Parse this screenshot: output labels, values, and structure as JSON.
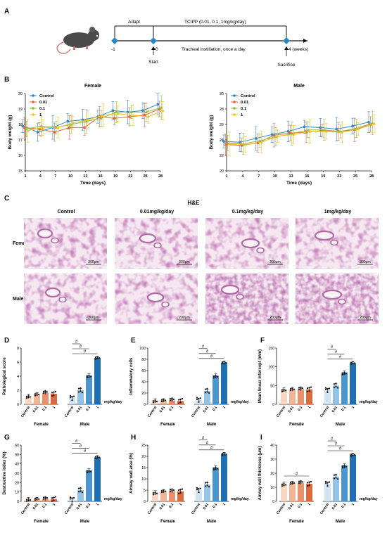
{
  "panel_labels": [
    "A",
    "B",
    "C",
    "D",
    "E",
    "F",
    "G",
    "H",
    "I"
  ],
  "timeline": {
    "adapt_label": "Adapt",
    "treatment_label": "TCIPP (0.01, 0.1, 1mg/kg/day)",
    "instillation_label": "Tracheal instillation, once a day",
    "ticks": [
      "-1",
      "0",
      "4 (weeks)"
    ],
    "start_label": "Start",
    "sacrifice_label": "Sacrifice"
  },
  "colors": {
    "control": "#2b86c5",
    "c001": "#e0663a",
    "c01": "#8dbb3f",
    "c1": "#f0c419",
    "female_bars": [
      "#f7d7c4",
      "#f1b596",
      "#e8916c",
      "#dc6a3f"
    ],
    "male_bars": [
      "#cfe3f3",
      "#94c3e6",
      "#4b96cf",
      "#1f6fb3"
    ],
    "he_bg": "#f6e8f1",
    "he_tissue": "#b06aa3"
  },
  "chart_data": [
    {
      "type": "line",
      "title": "Female",
      "xlabel": "Time (days)",
      "ylabel": "Body weight (g)",
      "x": [
        1,
        4,
        7,
        10,
        13,
        16,
        19,
        22,
        25,
        28
      ],
      "xlim": [
        1,
        28
      ],
      "ylim": [
        15,
        20
      ],
      "yticks": [
        15,
        16,
        17,
        18,
        19,
        20
      ],
      "series": [
        {
          "name": "Control",
          "values": [
            17.9,
            17.5,
            17.8,
            18.2,
            18.3,
            18.5,
            18.9,
            18.8,
            18.9,
            19.3
          ]
        },
        {
          "name": "0.01",
          "values": [
            17.8,
            17.7,
            17.5,
            17.8,
            17.8,
            18.5,
            18.4,
            18.5,
            18.6,
            19.0
          ]
        },
        {
          "name": "0.1",
          "values": [
            17.7,
            17.9,
            17.8,
            18.0,
            18.2,
            18.4,
            18.8,
            18.8,
            18.8,
            19.1
          ]
        },
        {
          "name": "1",
          "values": [
            17.6,
            17.8,
            17.8,
            18.1,
            18.3,
            18.6,
            18.7,
            18.6,
            18.5,
            18.9
          ]
        }
      ],
      "legend": "top-left"
    },
    {
      "type": "line",
      "title": "Male",
      "xlabel": "Time (days)",
      "ylabel": "Body weight (g)",
      "x": [
        1,
        4,
        7,
        10,
        13,
        16,
        19,
        22,
        25,
        28
      ],
      "xlim": [
        1,
        28
      ],
      "ylim": [
        20,
        30
      ],
      "yticks": [
        20,
        22,
        24,
        26,
        28,
        30
      ],
      "series": [
        {
          "name": "Control",
          "values": [
            23.8,
            23.7,
            24.2,
            24.7,
            25.1,
            25.7,
            25.6,
            25.4,
            25.8,
            26.3
          ]
        },
        {
          "name": "0.01",
          "values": [
            23.4,
            23.3,
            23.6,
            24.6,
            24.9,
            25.0,
            25.2,
            25.1,
            25.3,
            26.0
          ]
        },
        {
          "name": "0.1",
          "values": [
            23.6,
            23.5,
            23.9,
            24.4,
            24.8,
            25.3,
            25.3,
            25.1,
            25.5,
            26.2
          ]
        },
        {
          "name": "1",
          "values": [
            23.5,
            23.4,
            23.7,
            24.5,
            24.7,
            25.1,
            25.1,
            25.0,
            25.4,
            26.1
          ]
        }
      ],
      "legend": "top-left"
    },
    {
      "type": "bar",
      "ylabel": "Pathological score",
      "ylim": [
        0,
        8
      ],
      "yticks": [
        0,
        2,
        4,
        6,
        8
      ],
      "categories": [
        "Control",
        "0.01",
        "0.1",
        "1"
      ],
      "groups": [
        "Female",
        "Male"
      ],
      "unit_label": "mg/kg/day",
      "series": [
        {
          "name": "Female",
          "values": [
            1.2,
            1.4,
            1.6,
            1.5
          ]
        },
        {
          "name": "Male",
          "values": [
            0.9,
            2.0,
            4.1,
            6.6
          ]
        }
      ],
      "significance": [
        "#",
        "#",
        "#"
      ]
    },
    {
      "type": "bar",
      "ylabel": "Inflammatory cells",
      "ylim": [
        0,
        100
      ],
      "yticks": [
        0,
        20,
        40,
        60,
        80,
        100
      ],
      "categories": [
        "Control",
        "0.01",
        "0.1",
        "1"
      ],
      "groups": [
        "Female",
        "Male"
      ],
      "unit_label": "mg/kg/day",
      "series": [
        {
          "name": "Female",
          "values": [
            7,
            7,
            7,
            6
          ]
        },
        {
          "name": "Male",
          "values": [
            8,
            24,
            51,
            74
          ]
        }
      ],
      "significance": [
        "#",
        "#",
        "#"
      ]
    },
    {
      "type": "bar",
      "ylabel": "Mean linear intercept (mm)",
      "ylim": [
        0,
        150
      ],
      "yticks": [
        0,
        50,
        100,
        150
      ],
      "categories": [
        "Control",
        "0.01",
        "0.1",
        "1"
      ],
      "groups": [
        "Female",
        "Male"
      ],
      "unit_label": "mg/kg/day",
      "series": [
        {
          "name": "Female",
          "values": [
            40,
            40,
            40,
            40
          ]
        },
        {
          "name": "Male",
          "values": [
            38,
            50,
            85,
            110
          ]
        }
      ],
      "significance": [
        "#",
        "#",
        "#"
      ]
    },
    {
      "type": "bar",
      "ylabel": "Destructive index (%)",
      "ylim": [
        0,
        60
      ],
      "yticks": [
        0,
        10,
        20,
        30,
        40,
        50,
        60
      ],
      "categories": [
        "Control",
        "0.01",
        "0.1",
        "1"
      ],
      "groups": [
        "Female",
        "Male"
      ],
      "unit_label": "mg/kg/day",
      "series": [
        {
          "name": "Female",
          "values": [
            2.5,
            2.5,
            2.5,
            2.5
          ]
        },
        {
          "name": "Male",
          "values": [
            2,
            12,
            33,
            47
          ]
        }
      ],
      "significance": [
        "#",
        "#",
        "#"
      ]
    },
    {
      "type": "bar",
      "ylabel": "Airway wall area (%)",
      "ylim": [
        0,
        25
      ],
      "yticks": [
        0,
        5,
        10,
        15,
        20,
        25
      ],
      "categories": [
        "Control",
        "0.01",
        "0.1",
        "1"
      ],
      "groups": [
        "Female",
        "Male"
      ],
      "unit_label": "mg/kg/day",
      "series": [
        {
          "name": "Female",
          "values": [
            4,
            4.5,
            4.5,
            4.5
          ]
        },
        {
          "name": "Male",
          "values": [
            5,
            7.5,
            15,
            21
          ]
        }
      ],
      "significance": [
        "#",
        "#",
        "#"
      ]
    },
    {
      "type": "bar",
      "ylabel": "Airway wall thickness (μm)",
      "ylim": [
        0,
        40
      ],
      "yticks": [
        0,
        10,
        20,
        30,
        40
      ],
      "categories": [
        "Control",
        "0.01",
        "0.1",
        "1"
      ],
      "groups": [
        "Female",
        "Male"
      ],
      "unit_label": "mg/kg/day",
      "series": [
        {
          "name": "Female",
          "values": [
            12.5,
            13,
            13,
            12.5
          ]
        },
        {
          "name": "Male",
          "values": [
            12.5,
            17.5,
            25.5,
            33
          ]
        }
      ],
      "significance": [
        "#",
        "#",
        "#",
        "#"
      ]
    }
  ],
  "he": {
    "title": "H&E",
    "columns": [
      "Control",
      "0.01mg/kg/day",
      "0.1mg/kg/day",
      "1mg/kg/day"
    ],
    "rows": [
      "Female",
      "Male"
    ],
    "scale_bar": "200μm"
  }
}
